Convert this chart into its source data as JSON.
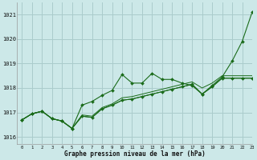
{
  "title": "Graphe pression niveau de la mer (hPa)",
  "bg_color": "#cce8e8",
  "grid_color": "#aacccc",
  "line_color": "#1a6b1a",
  "xlim": [
    -0.5,
    23
  ],
  "ylim": [
    1015.7,
    1021.5
  ],
  "yticks": [
    1016,
    1017,
    1018,
    1019,
    1020,
    1021
  ],
  "xticks": [
    0,
    1,
    2,
    3,
    4,
    5,
    6,
    7,
    8,
    9,
    10,
    11,
    12,
    13,
    14,
    15,
    16,
    17,
    18,
    19,
    20,
    21,
    22,
    23
  ],
  "series1": [
    1016.7,
    1016.95,
    1017.05,
    1016.75,
    1016.65,
    1016.35,
    1017.3,
    1017.45,
    1017.7,
    1017.9,
    1018.55,
    1018.2,
    1018.2,
    1018.6,
    1018.35,
    1018.35,
    1018.2,
    1018.1,
    1017.75,
    1018.1,
    1018.45,
    1019.1,
    1019.9,
    1021.1
  ],
  "series2": [
    1016.7,
    1016.95,
    1017.05,
    1016.75,
    1016.65,
    1016.35,
    1016.85,
    1016.8,
    1017.15,
    1017.3,
    1017.5,
    1017.55,
    1017.65,
    1017.75,
    1017.85,
    1017.95,
    1018.05,
    1018.15,
    1017.75,
    1018.05,
    1018.4,
    1018.4,
    1018.4,
    1018.4
  ],
  "series3": [
    1016.7,
    1016.95,
    1017.05,
    1016.75,
    1016.65,
    1016.35,
    1016.85,
    1016.8,
    1017.15,
    1017.3,
    1017.5,
    1017.55,
    1017.65,
    1017.75,
    1017.85,
    1017.95,
    1018.05,
    1018.15,
    1017.75,
    1018.05,
    1018.4,
    1018.4,
    1018.4,
    1018.4
  ],
  "series4": [
    1016.7,
    1016.95,
    1017.05,
    1016.75,
    1016.65,
    1016.35,
    1016.9,
    1016.85,
    1017.2,
    1017.35,
    1017.6,
    1017.65,
    1017.75,
    1017.85,
    1017.95,
    1018.05,
    1018.15,
    1018.25,
    1018.0,
    1018.2,
    1018.5,
    1018.5,
    1018.5,
    1018.5
  ]
}
